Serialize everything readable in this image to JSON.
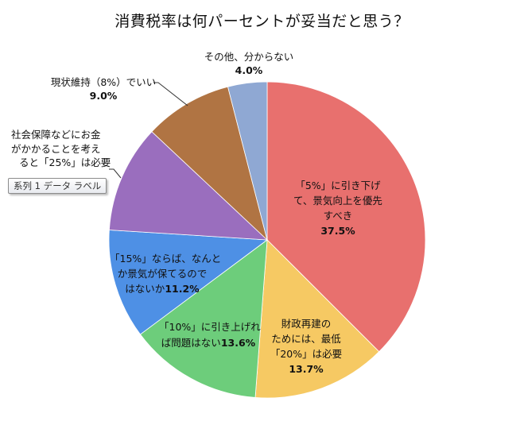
{
  "chart_data": {
    "type": "pie",
    "title": "消費税率は何パーセントが妥当だと思う？",
    "start_angle": "12 o'clock, clockwise",
    "slices": [
      {
        "label": "「5%」に引き下げて、景気向上を優先すべき",
        "value": 37.5,
        "color": "#E8706E"
      },
      {
        "label": "財政再建のためには、最低「20%」は必要",
        "value": 13.7,
        "color": "#F6C963"
      },
      {
        "label": "「10%」に引き上げれば問題はない",
        "value": 13.6,
        "color": "#6DCD7B"
      },
      {
        "label": "「15%」ならば、なんとか景気が保てるのではないか",
        "value": 11.2,
        "color": "#4E90E5"
      },
      {
        "label": "社会保障などにお金がかかることを考えると「25%」は必要",
        "value": 11.0,
        "color": "#9A6EBE"
      },
      {
        "label": "現状維持（8%）でいい",
        "value": 9.0,
        "color": "#B07443"
      },
      {
        "label": "その他、分からない",
        "value": 4.0,
        "color": "#8FA8D3"
      }
    ]
  },
  "title": "消費税率は何パーセントが妥当だと思う？",
  "labels": {
    "red": {
      "lines": [
        "「5%」に引き下げ",
        "て、景気向上を優先",
        "すべき"
      ],
      "pct": "37.5%"
    },
    "yellow": {
      "lines": [
        "財政再建の",
        "ためには、最低",
        "「20%」は必要"
      ],
      "pct": "13.7%"
    },
    "green": {
      "line1": "「10%」に引き上げれ",
      "line2": "ば問題はない",
      "pct": "13.6%"
    },
    "blue": {
      "line1": "「15%」ならば、なんと",
      "line2": "か景気が保てるので",
      "line3": "はないか",
      "pct": "11.2%"
    },
    "purple": {
      "lines": [
        "社会保障などにお金",
        "がかかることを考え",
        "ると「25%」は必要"
      ]
    },
    "brown": {
      "line1": "現状維持（8%）でいい",
      "pct": "9.0%"
    },
    "gray": {
      "line1": "その他、分からない",
      "pct": "4.0%"
    }
  },
  "tooltip": "系列 1 データ ラベル"
}
